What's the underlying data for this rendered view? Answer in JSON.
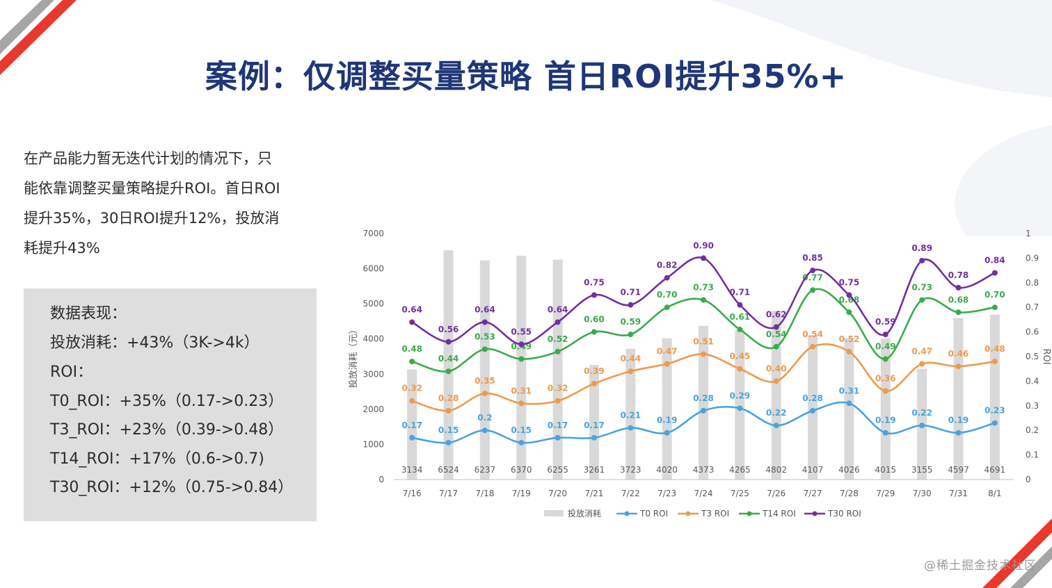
{
  "slide": {
    "title": "案例：仅调整买量策略 首日ROI提升35%+",
    "intro_lines": [
      "在产品能力暂无迭代计划的情况下，只",
      "能依靠调整买量策略提升ROI。首日ROI",
      "提升35%，30日ROI提升12%，投放消",
      "耗提升43%"
    ],
    "stats": {
      "heading": "数据表现：",
      "lines": [
        "投放消耗：+43%（3K->4k）",
        "ROI：",
        "T0_ROI：+35%（0.17->0.23）",
        "T3_ROI：+23%（0.39->0.48）",
        "T14_ROI：+17%（0.6->0.7)",
        "T30_ROI：+12%（0.75->0.84）"
      ]
    },
    "watermark": "@稀土掘金技术社区",
    "colors": {
      "title": "#1f3778",
      "bar": "#d9d9d9",
      "t0": "#4aa3df",
      "t3": "#ee9a4d",
      "t14": "#3aab4a",
      "t30": "#7030a0",
      "deco_red": "#e8392c"
    }
  },
  "chart_data": {
    "type": "bar+line",
    "categories": [
      "7/16",
      "7/17",
      "7/18",
      "7/19",
      "7/20",
      "7/21",
      "7/22",
      "7/23",
      "7/24",
      "7/25",
      "7/26",
      "7/27",
      "7/28",
      "7/29",
      "7/30",
      "7/31",
      "8/1"
    ],
    "bar_series": {
      "name": "投放消耗",
      "values": [
        3134,
        6524,
        6237,
        6370,
        6255,
        3261,
        3723,
        4020,
        4373,
        4265,
        4802,
        4107,
        4026,
        4015,
        3155,
        4597,
        4691
      ]
    },
    "line_series": [
      {
        "name": "T0 ROI",
        "key": "t0",
        "values": [
          0.17,
          0.15,
          0.2,
          0.15,
          0.17,
          0.17,
          0.21,
          0.19,
          0.28,
          0.29,
          0.22,
          0.28,
          0.31,
          0.19,
          0.22,
          0.19,
          0.23
        ]
      },
      {
        "name": "T3 ROI",
        "key": "t3",
        "values": [
          0.32,
          0.28,
          0.35,
          0.31,
          0.32,
          0.39,
          0.44,
          0.47,
          0.51,
          0.45,
          0.4,
          0.54,
          0.52,
          0.36,
          0.47,
          0.46,
          0.48
        ]
      },
      {
        "name": "T14 ROI",
        "key": "t14",
        "values": [
          0.48,
          0.44,
          0.53,
          0.49,
          0.52,
          0.6,
          0.59,
          0.7,
          0.73,
          0.61,
          0.54,
          0.77,
          0.68,
          0.49,
          0.73,
          0.68,
          0.7
        ]
      },
      {
        "name": "T30 ROI",
        "key": "t30",
        "values": [
          0.64,
          0.56,
          0.64,
          0.55,
          0.64,
          0.75,
          0.71,
          0.82,
          0.9,
          0.71,
          0.62,
          0.85,
          0.75,
          0.59,
          0.89,
          0.78,
          0.84
        ]
      }
    ],
    "y_left": {
      "label": "投放消耗（元）",
      "min": 0,
      "max": 7000,
      "ticks": [
        0,
        1000,
        2000,
        3000,
        4000,
        5000,
        6000,
        7000
      ]
    },
    "y_right": {
      "label": "ROI",
      "min": 0,
      "max": 1,
      "ticks": [
        0,
        0.1,
        0.2,
        0.3,
        0.4,
        0.5,
        0.6,
        0.7,
        0.8,
        0.9,
        1
      ]
    },
    "legend": {
      "position": "bottom",
      "items": [
        "投放消耗",
        "T0 ROI",
        "T3 ROI",
        "T14 ROI",
        "T30 ROI"
      ]
    }
  }
}
